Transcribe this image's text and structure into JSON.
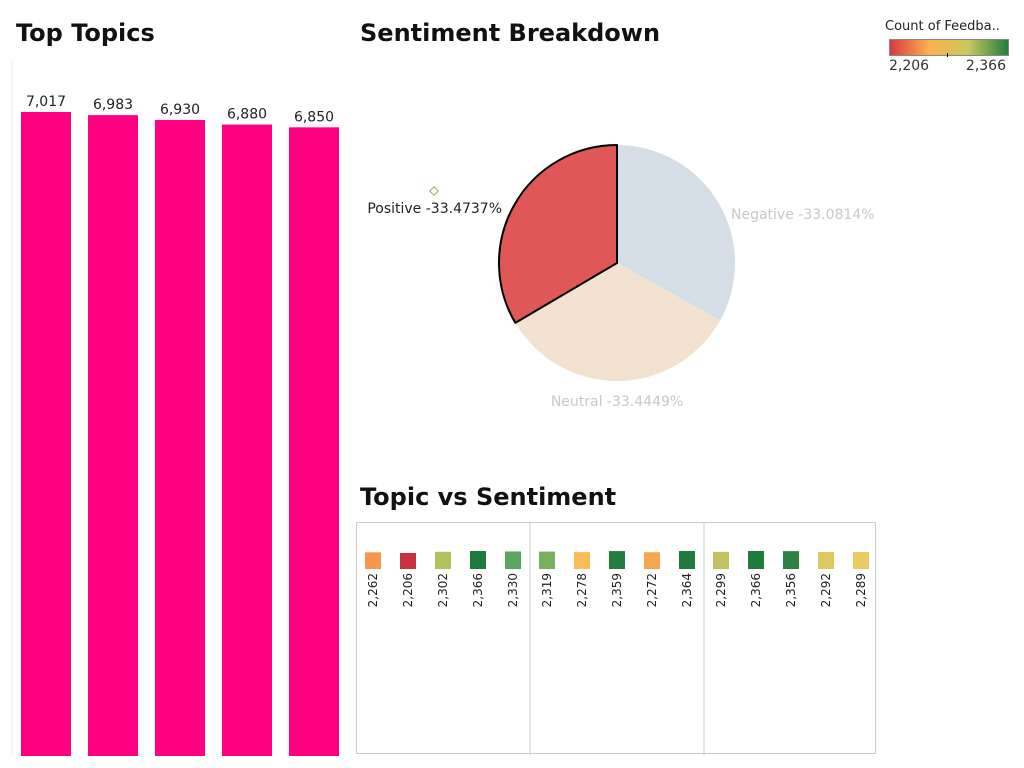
{
  "titles": {
    "top_topics": "Top Topics",
    "sentiment": "Sentiment Breakdown",
    "topic_vs_sentiment": "Topic vs Sentiment"
  },
  "legend": {
    "title": "Count of Feedba..",
    "min_label": "2,206",
    "max_label": "2,366",
    "gradient": [
      "#d63a3f",
      "#fbb14e",
      "#c8c85a",
      "#1f7f3d"
    ]
  },
  "chart_data": [
    {
      "type": "bar",
      "title": "Top Topics",
      "values": [
        7017,
        6983,
        6930,
        6880,
        6850
      ],
      "labels": [
        "7,017",
        "6,983",
        "6,930",
        "6,880",
        "6,850"
      ],
      "color": "#ff0080",
      "ylim": [
        0,
        7017
      ]
    },
    {
      "type": "pie",
      "title": "Sentiment Breakdown",
      "slices": [
        {
          "name": "Positive",
          "value": 33.4737,
          "label": "Positive -33.4737%",
          "color": "#e05757",
          "highlighted": true
        },
        {
          "name": "Negative",
          "value": 33.0814,
          "label": "Negative -33.0814%",
          "color": "#d5dee6"
        },
        {
          "name": "Neutral",
          "value": 33.4449,
          "label": "Neutral -33.4449%",
          "color": "#f3e2cf"
        }
      ]
    },
    {
      "type": "heatmap",
      "title": "Topic vs Sentiment",
      "groups": [
        {
          "values": [
            2262,
            2206,
            2302,
            2366,
            2330
          ],
          "labels": [
            "2,262",
            "2,206",
            "2,302",
            "2,366",
            "2,330"
          ],
          "colors": [
            "#f5984f",
            "#c8303e",
            "#b1c35d",
            "#1e7b3d",
            "#5aa560"
          ]
        },
        {
          "values": [
            2319,
            2278,
            2359,
            2272,
            2364
          ],
          "labels": [
            "2,319",
            "2,278",
            "2,359",
            "2,272",
            "2,364"
          ],
          "colors": [
            "#79b05b",
            "#fbbb55",
            "#237d3e",
            "#f7a650",
            "#1f7b3d"
          ]
        },
        {
          "values": [
            2299,
            2366,
            2356,
            2292,
            2289
          ],
          "labels": [
            "2,299",
            "2,366",
            "2,356",
            "2,292",
            "2,289"
          ],
          "colors": [
            "#bfc360",
            "#1e7b3d",
            "#2c8240",
            "#dcc95f",
            "#e8cc62"
          ]
        }
      ]
    }
  ]
}
